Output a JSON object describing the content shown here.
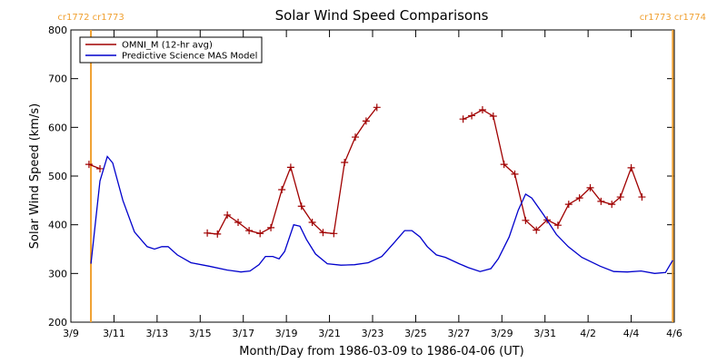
{
  "chart_data": {
    "type": "line",
    "title": "Solar Wind Speed Comparisons",
    "x_label": "Month/Day from 1986-03-09 to 1986-04-06 (UT)",
    "y_label": "Solar Wind Speed (km/s)",
    "xlim": [
      0,
      28
    ],
    "xticks": [
      {
        "value": 0,
        "label": "3/9"
      },
      {
        "value": 2,
        "label": "3/11"
      },
      {
        "value": 4,
        "label": "3/13"
      },
      {
        "value": 6,
        "label": "3/15"
      },
      {
        "value": 8,
        "label": "3/17"
      },
      {
        "value": 10,
        "label": "3/19"
      },
      {
        "value": 12,
        "label": "3/21"
      },
      {
        "value": 14,
        "label": "3/23"
      },
      {
        "value": 16,
        "label": "3/25"
      },
      {
        "value": 18,
        "label": "3/27"
      },
      {
        "value": 20,
        "label": "3/29"
      },
      {
        "value": 22,
        "label": "3/31"
      },
      {
        "value": 24,
        "label": "4/2"
      },
      {
        "value": 26,
        "label": "4/4"
      },
      {
        "value": 28,
        "label": "4/6"
      }
    ],
    "ylim": [
      200,
      800
    ],
    "yticks": [
      200,
      300,
      400,
      500,
      600,
      700,
      800
    ],
    "legend": "upper left",
    "markers": [
      {
        "x": 0.93,
        "label": "cr1772 cr1773",
        "color": "#f0a030"
      },
      {
        "x": 27.93,
        "label": "cr1773 cr1774",
        "color": "#f0a030"
      }
    ],
    "series": [
      {
        "name": "OMNI_M (12-hr avg)",
        "color": "#a00000",
        "marker": "plus",
        "x": [
          0.84,
          1.35,
          3.8,
          6.33,
          6.8,
          7.26,
          7.76,
          8.27,
          8.78,
          9.28,
          9.79,
          10.2,
          10.7,
          11.2,
          11.7,
          12.2,
          12.7,
          13.2,
          13.7,
          14.2,
          16.2,
          18.2,
          18.6,
          19.1,
          19.6,
          20.1,
          20.6,
          21.1,
          21.6,
          22.1,
          22.6,
          23.1,
          23.6,
          24.1,
          24.6,
          25.1,
          25.5,
          26.0,
          26.5
        ],
        "values": [
          524,
          515,
          null,
          383,
          381,
          420,
          405,
          388,
          382,
          394,
          472,
          518,
          438,
          405,
          384,
          382,
          528,
          580,
          613,
          641,
          null,
          617,
          624,
          636,
          623,
          524,
          504,
          409,
          389,
          410,
          399,
          442,
          455,
          476,
          448,
          442,
          457,
          517,
          457
        ]
      },
      {
        "name": "Predictive Science MAS Model",
        "color": "#0000cc",
        "marker": "none",
        "x": [
          0.93,
          1.35,
          1.69,
          1.94,
          2.41,
          2.95,
          3.54,
          3.88,
          4.22,
          4.51,
          4.94,
          5.57,
          6.41,
          7.26,
          7.89,
          8.31,
          8.73,
          9.03,
          9.37,
          9.66,
          9.92,
          10.34,
          10.63,
          10.93,
          11.35,
          11.9,
          12.53,
          13.16,
          13.8,
          14.43,
          14.94,
          15.49,
          15.82,
          16.2,
          16.54,
          16.96,
          17.38,
          18.02,
          18.44,
          18.99,
          19.49,
          19.83,
          20.34,
          20.76,
          21.1,
          21.39,
          21.94,
          22.53,
          23.08,
          23.71,
          24.56,
          25.19,
          25.82,
          26.46,
          27.09,
          27.59,
          27.93
        ],
        "values": [
          320,
          490,
          540,
          527,
          450,
          385,
          355,
          350,
          355,
          355,
          338,
          322,
          315,
          307,
          303,
          305,
          318,
          335,
          335,
          330,
          345,
          400,
          397,
          370,
          340,
          320,
          317,
          318,
          322,
          335,
          360,
          388,
          388,
          375,
          355,
          338,
          333,
          320,
          312,
          304,
          310,
          330,
          375,
          430,
          463,
          455,
          420,
          380,
          355,
          333,
          315,
          304,
          303,
          305,
          300,
          302,
          327
        ]
      }
    ]
  }
}
